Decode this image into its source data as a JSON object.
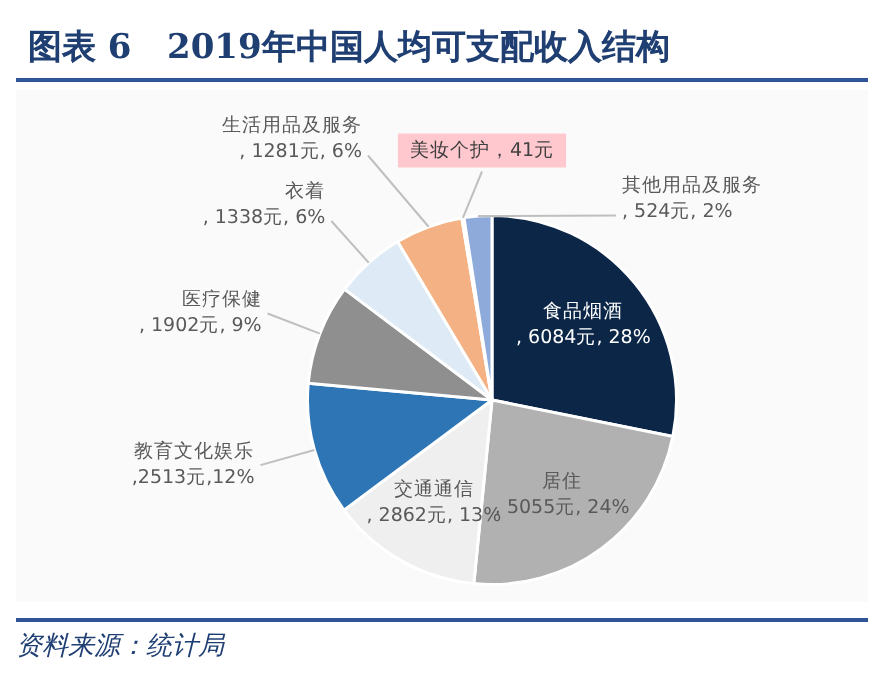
{
  "chart_data": {
    "type": "pie",
    "title": "图表 6   2019年中国人均可支配收入结构",
    "categories": [
      "食品烟酒",
      "居住",
      "交通通信",
      "教育文化娱乐",
      "医疗保健",
      "衣着",
      "生活用品及服务",
      "美妆个护",
      "其他用品及服务"
    ],
    "values": [
      6084,
      5055,
      2862,
      2513,
      1902,
      1338,
      1281,
      41,
      524
    ],
    "value_labels": [
      ", 6084元, 28%",
      ", 5055元, 24%",
      ", 2862元, 13%",
      ",2513元,12%",
      ", 1902元, 9%",
      ", 1338元, 6%",
      ", 1281元, 6%",
      "，41元",
      ", 524元, 2%"
    ],
    "colors": [
      "#0c2647",
      "#b1b1b1",
      "#efefef",
      "#2e75b6",
      "#8f8f8f",
      "#deebf7",
      "#f4b183",
      "#c00000",
      "#8eaadb"
    ],
    "legend": false,
    "annotations": [
      "资料来源：统计局"
    ]
  }
}
